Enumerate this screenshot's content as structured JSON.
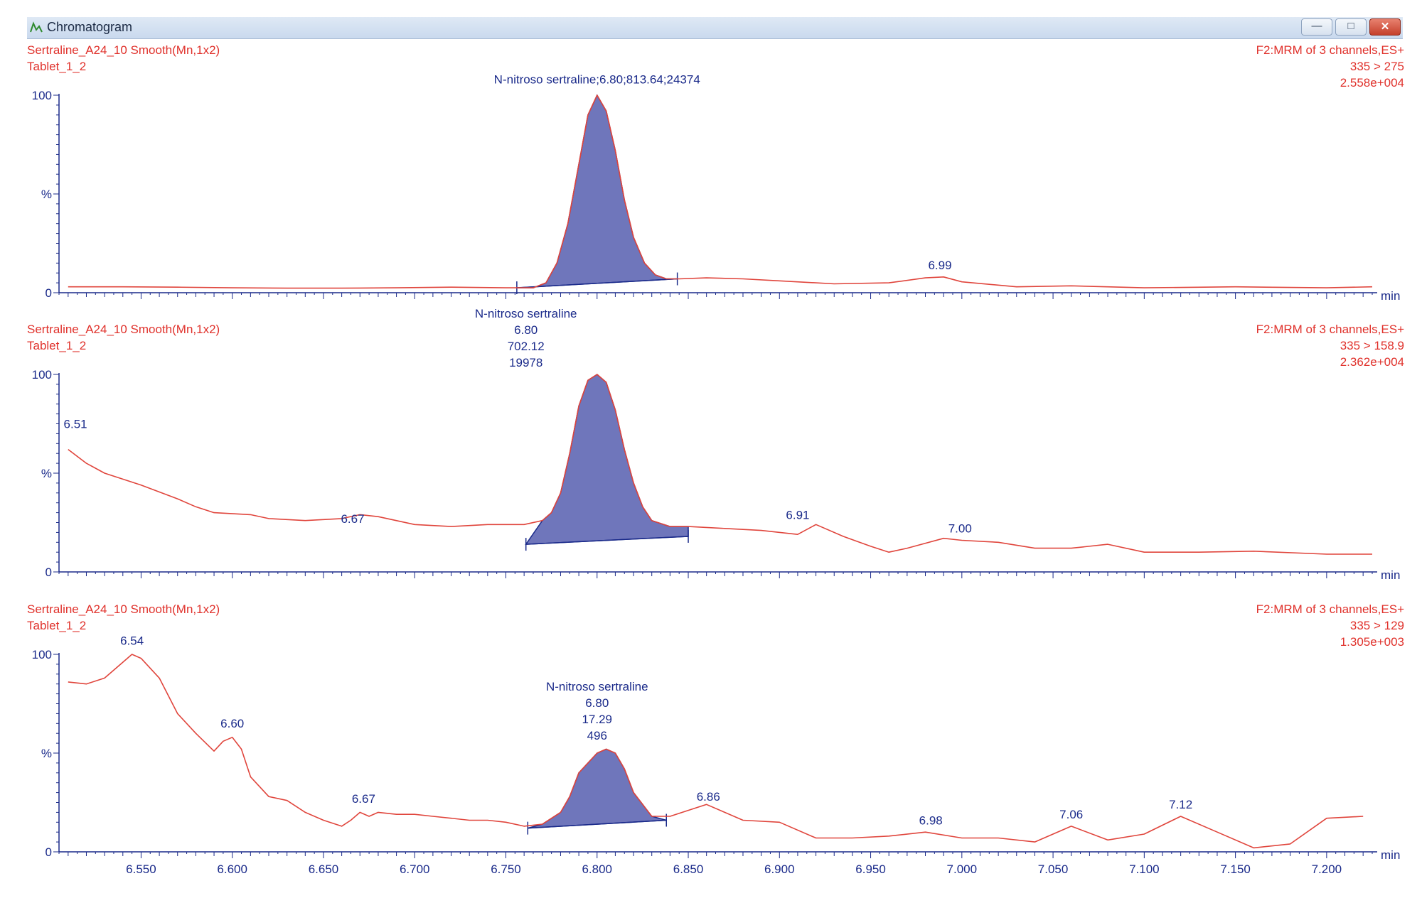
{
  "window": {
    "title": "Chromatogram"
  },
  "chart_data": [
    {
      "type": "line",
      "header_left": [
        "Sertraline_A24_10 Smooth(Mn,1x2)",
        "Tablet_1_2"
      ],
      "header_right": [
        "F2:MRM of 3 channels,ES+",
        "335 > 275",
        "2.558e+004"
      ],
      "ylabel": "%",
      "yticks": [
        "0",
        "100"
      ],
      "ylim": [
        0,
        100
      ],
      "xlim": [
        6.505,
        7.225
      ],
      "xunit": "min",
      "show_xticklabels": false,
      "series": [
        {
          "x": [
            6.51,
            6.54,
            6.57,
            6.6,
            6.63,
            6.66,
            6.69,
            6.72,
            6.75,
            6.765,
            6.772,
            6.778,
            6.784,
            6.79,
            6.795,
            6.8,
            6.805,
            6.81,
            6.815,
            6.82,
            6.826,
            6.832,
            6.838,
            6.845,
            6.86,
            6.88,
            6.9,
            6.93,
            6.96,
            6.98,
            6.99,
            7.0,
            7.03,
            7.06,
            7.1,
            7.15,
            7.2,
            7.225
          ],
          "y": [
            3,
            3,
            2.8,
            2.5,
            2.3,
            2.3,
            2.5,
            2.8,
            2.5,
            2.5,
            5,
            15,
            35,
            65,
            90,
            100,
            92,
            72,
            47,
            28,
            15,
            9,
            7,
            7,
            7.5,
            7,
            6,
            4.5,
            5,
            7.5,
            8,
            5.5,
            3,
            3.5,
            2.5,
            3,
            2.5,
            3
          ]
        }
      ],
      "peaks": [
        {
          "start": 6.756,
          "end": 6.844,
          "base": [
            2.5,
            7
          ],
          "label": [
            "N-nitroso sertraline;6.80;813.64;24374"
          ],
          "label_x": 6.8,
          "label_y": 103
        },
        {
          "label": [
            "6.99"
          ],
          "label_x": 6.988,
          "label_y": 9
        }
      ]
    },
    {
      "type": "line",
      "header_left": [
        "Sertraline_A24_10 Smooth(Mn,1x2)",
        "Tablet_1_2"
      ],
      "header_right": [
        "F2:MRM of 3 channels,ES+",
        "335 > 158.9",
        "2.362e+004"
      ],
      "ylabel": "%",
      "yticks": [
        "0",
        "100"
      ],
      "ylim": [
        0,
        100
      ],
      "xlim": [
        6.505,
        7.225
      ],
      "xunit": "min",
      "show_xticklabels": false,
      "series": [
        {
          "x": [
            6.51,
            6.52,
            6.53,
            6.55,
            6.57,
            6.58,
            6.59,
            6.61,
            6.62,
            6.64,
            6.66,
            6.67,
            6.68,
            6.7,
            6.72,
            6.74,
            6.76,
            6.77,
            6.775,
            6.78,
            6.785,
            6.79,
            6.795,
            6.8,
            6.805,
            6.81,
            6.815,
            6.82,
            6.825,
            6.83,
            6.84,
            6.85,
            6.87,
            6.89,
            6.91,
            6.92,
            6.935,
            6.95,
            6.96,
            6.97,
            6.99,
            7.0,
            7.02,
            7.04,
            7.06,
            7.08,
            7.1,
            7.13,
            7.16,
            7.2,
            7.225
          ],
          "y": [
            62,
            55,
            50,
            44,
            37,
            33,
            30,
            29,
            27,
            26,
            27,
            29,
            28,
            24,
            23,
            24,
            24,
            26,
            30,
            40,
            60,
            84,
            97,
            100,
            96,
            82,
            62,
            45,
            33,
            26,
            23,
            23,
            22,
            21,
            19,
            24,
            18,
            13,
            10,
            12,
            17,
            16,
            15,
            12,
            12,
            14,
            10,
            10,
            10.5,
            9,
            9
          ]
        }
      ],
      "peaks": [
        {
          "start": 6.761,
          "end": 6.85,
          "base": [
            14,
            18
          ],
          "label": [
            "N-nitroso sertraline",
            "6.80",
            "702.12",
            "19978"
          ],
          "label_x": 6.761,
          "label_y": 101
        },
        {
          "label": [
            "6.51"
          ],
          "label_x": 6.514,
          "label_y": 70
        },
        {
          "label": [
            "6.67"
          ],
          "label_x": 6.666,
          "label_y": 22
        },
        {
          "label": [
            "6.91"
          ],
          "label_x": 6.91,
          "label_y": 24
        },
        {
          "label": [
            "7.00"
          ],
          "label_x": 6.999,
          "label_y": 17
        }
      ]
    },
    {
      "type": "line",
      "header_left": [
        "Sertraline_A24_10 Smooth(Mn,1x2)",
        "Tablet_1_2"
      ],
      "header_right": [
        "F2:MRM of 3 channels,ES+",
        "335 > 129",
        "1.305e+003"
      ],
      "ylabel": "%",
      "yticks": [
        "0",
        "100"
      ],
      "ylim": [
        0,
        100
      ],
      "xlim": [
        6.505,
        7.225
      ],
      "xunit": "min",
      "show_xticklabels": true,
      "xticks": [
        "6.550",
        "6.600",
        "6.650",
        "6.700",
        "6.750",
        "6.800",
        "6.850",
        "6.900",
        "6.950",
        "7.000",
        "7.050",
        "7.100",
        "7.150",
        "7.200"
      ],
      "series": [
        {
          "x": [
            6.51,
            6.52,
            6.53,
            6.54,
            6.545,
            6.55,
            6.56,
            6.57,
            6.58,
            6.59,
            6.595,
            6.6,
            6.605,
            6.61,
            6.62,
            6.63,
            6.64,
            6.65,
            6.66,
            6.665,
            6.67,
            6.675,
            6.68,
            6.69,
            6.7,
            6.71,
            6.72,
            6.73,
            6.74,
            6.75,
            6.76,
            6.77,
            6.78,
            6.785,
            6.79,
            6.8,
            6.805,
            6.81,
            6.815,
            6.82,
            6.83,
            6.84,
            6.85,
            6.86,
            6.87,
            6.88,
            6.9,
            6.92,
            6.94,
            6.96,
            6.98,
            7.0,
            7.02,
            7.04,
            7.06,
            7.08,
            7.1,
            7.12,
            7.14,
            7.16,
            7.18,
            7.2,
            7.22
          ],
          "y": [
            86,
            85,
            88,
            96,
            100,
            98,
            88,
            70,
            60,
            51,
            56,
            58,
            52,
            38,
            28,
            26,
            20,
            16,
            13,
            16,
            20,
            18,
            20,
            19,
            19,
            18,
            17,
            16,
            16,
            15,
            13,
            14,
            20,
            28,
            40,
            50,
            52,
            50,
            42,
            30,
            18,
            18,
            21,
            24,
            20,
            16,
            15,
            7,
            7,
            8,
            10,
            7,
            7,
            5,
            13,
            6,
            9,
            18,
            10,
            2,
            4,
            17,
            18
          ]
        }
      ],
      "peaks": [
        {
          "start": 6.762,
          "end": 6.838,
          "base": [
            12,
            16
          ],
          "label": [
            "N-nitroso sertraline",
            "6.80",
            "17.29",
            "496"
          ],
          "label_x": 6.8,
          "label_y": 54
        },
        {
          "label": [
            "6.54"
          ],
          "label_x": 6.545,
          "label_y": 102
        },
        {
          "label": [
            "6.60"
          ],
          "label_x": 6.6,
          "label_y": 60
        },
        {
          "label": [
            "6.67"
          ],
          "label_x": 6.672,
          "label_y": 22
        },
        {
          "label": [
            "6.86"
          ],
          "label_x": 6.861,
          "label_y": 23
        },
        {
          "label": [
            "6.98"
          ],
          "label_x": 6.983,
          "label_y": 11
        },
        {
          "label": [
            "7.06"
          ],
          "label_x": 7.06,
          "label_y": 14
        },
        {
          "label": [
            "7.12"
          ],
          "label_x": 7.12,
          "label_y": 19
        }
      ]
    }
  ],
  "colors": {
    "trace": "#e0453c",
    "peak_fill": "#6f76bb",
    "peak_edge": "#1a2a8a",
    "axis": "#1a2a8a",
    "header": "#e0312b"
  }
}
